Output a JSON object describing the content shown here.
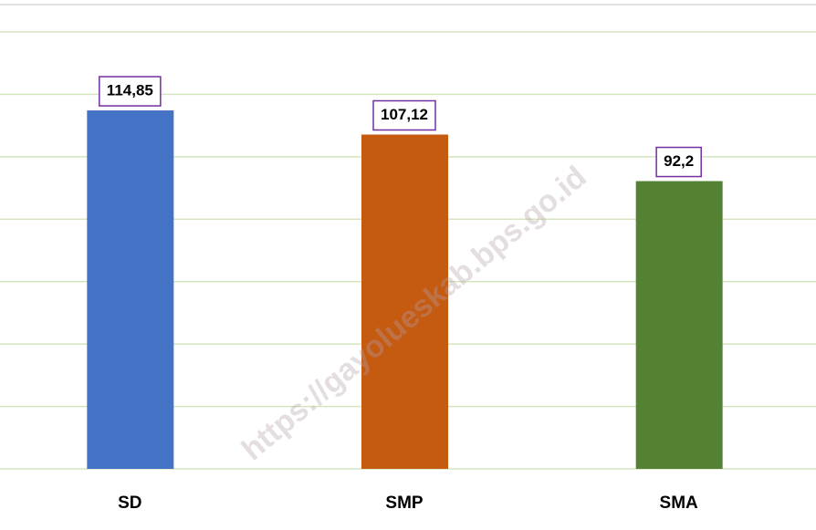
{
  "chart_data": {
    "type": "bar",
    "categories": [
      "SD",
      "SMP",
      "SMA"
    ],
    "values": [
      114.85,
      107.12,
      92.2
    ],
    "value_labels": [
      "114,85",
      "107,12",
      "92,2"
    ],
    "colors": [
      "#4472c4",
      "#c55a11",
      "#548235"
    ],
    "ylim": [
      0,
      140
    ],
    "yticks": [
      0,
      20,
      40,
      60,
      80,
      100,
      120,
      140
    ],
    "grid": true,
    "watermark": "https://gayolueskab.bps.go.id"
  }
}
